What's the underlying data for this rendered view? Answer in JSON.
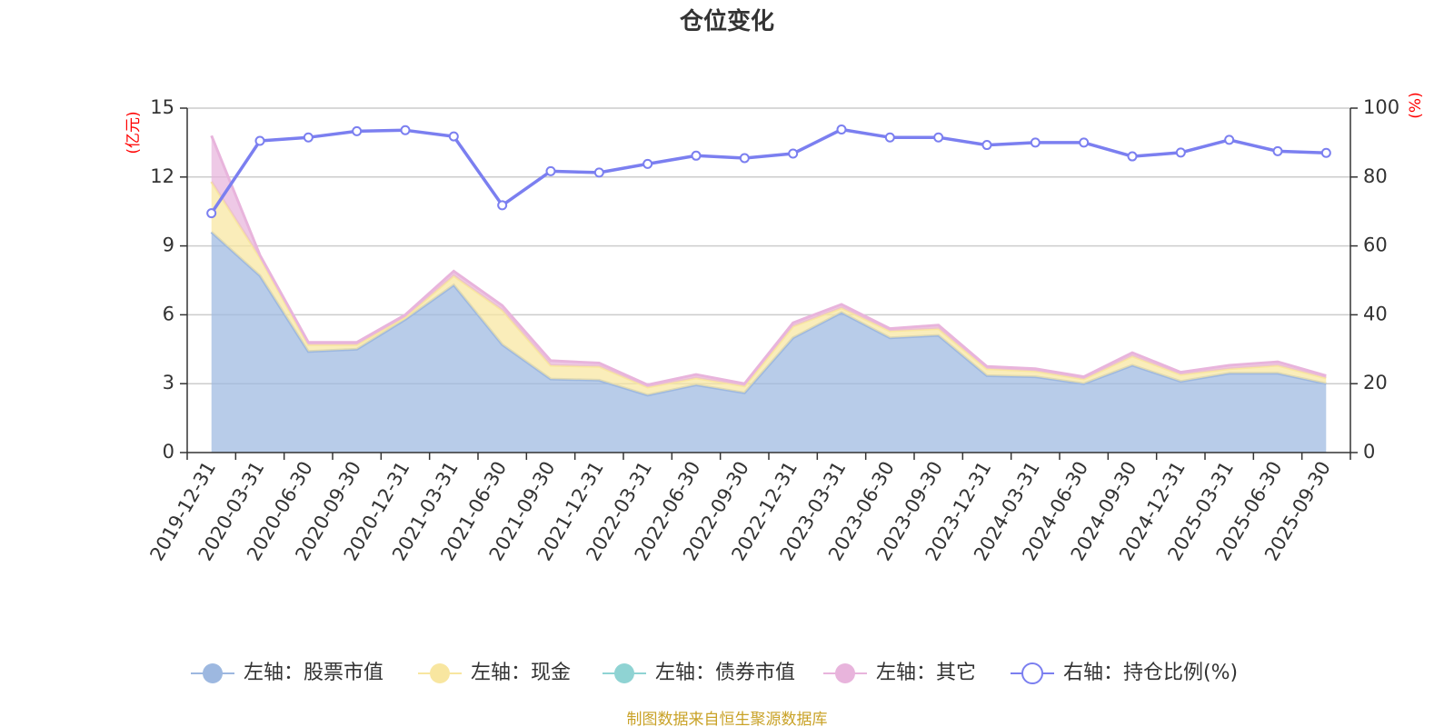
{
  "chart_data": {
    "type": "area",
    "title": "仓位变化",
    "left_unit": "(亿元)",
    "right_unit": "(%)",
    "left_ticks": [
      "0",
      "3",
      "6",
      "9",
      "12",
      "15"
    ],
    "right_ticks": [
      "0",
      "20",
      "40",
      "60",
      "80",
      "100"
    ],
    "left_ylim": [
      0,
      15
    ],
    "right_ylim": [
      0,
      100
    ],
    "categories": [
      "2019-12-31",
      "2020-03-31",
      "2020-06-30",
      "2020-09-30",
      "2020-12-31",
      "2021-03-31",
      "2021-06-30",
      "2021-09-30",
      "2021-12-31",
      "2022-03-31",
      "2022-06-30",
      "2022-09-30",
      "2022-12-31",
      "2023-03-31",
      "2023-06-30",
      "2023-09-30",
      "2023-12-31",
      "2024-03-31",
      "2024-06-30",
      "2024-09-30",
      "2024-12-31",
      "2025-03-31",
      "2025-06-30",
      "2025-09-30"
    ],
    "series": [
      {
        "name": "左轴：股票市值",
        "axis": "left",
        "kind": "stacked-area",
        "color": "#9db8e0",
        "values": [
          9.6,
          7.7,
          4.4,
          4.5,
          5.8,
          7.3,
          4.7,
          3.2,
          3.15,
          2.5,
          2.95,
          2.6,
          5.0,
          6.1,
          5.0,
          5.1,
          3.35,
          3.3,
          3.0,
          3.8,
          3.1,
          3.45,
          3.45,
          3.0
        ]
      },
      {
        "name": "左轴：现金",
        "axis": "left",
        "kind": "stacked-area",
        "color": "#f8e6a0",
        "values": [
          2.2,
          0.8,
          0.3,
          0.2,
          0.1,
          0.4,
          1.5,
          0.6,
          0.6,
          0.35,
          0.3,
          0.3,
          0.5,
          0.2,
          0.3,
          0.3,
          0.3,
          0.25,
          0.2,
          0.4,
          0.3,
          0.2,
          0.35,
          0.25
        ]
      },
      {
        "name": "左轴：债券市值",
        "axis": "left",
        "kind": "stacked-area",
        "color": "#8fd3d3",
        "values": [
          0,
          0,
          0,
          0,
          0,
          0,
          0,
          0,
          0,
          0,
          0,
          0,
          0,
          0,
          0,
          0,
          0,
          0,
          0,
          0,
          0,
          0,
          0,
          0
        ]
      },
      {
        "name": "左轴：其它",
        "axis": "left",
        "kind": "stacked-area",
        "color": "#e8b4dc",
        "values": [
          2.0,
          0.1,
          0.1,
          0.1,
          0.1,
          0.2,
          0.2,
          0.2,
          0.15,
          0.1,
          0.15,
          0.1,
          0.15,
          0.15,
          0.1,
          0.15,
          0.1,
          0.1,
          0.1,
          0.15,
          0.1,
          0.15,
          0.15,
          0.1
        ]
      },
      {
        "name": "右轴：持仓比例(%)",
        "axis": "right",
        "kind": "line",
        "color": "#7b7ff0",
        "values": [
          69.5,
          90.5,
          91.5,
          93.3,
          93.6,
          91.8,
          71.8,
          81.7,
          81.3,
          83.8,
          86.2,
          85.5,
          86.8,
          93.8,
          91.5,
          91.5,
          89.3,
          90.0,
          90.0,
          86.0,
          87.1,
          90.8,
          87.5,
          87.0
        ]
      }
    ],
    "legend_position": "bottom",
    "grid": true,
    "source_note": "制图数据来自恒生聚源数据库"
  }
}
